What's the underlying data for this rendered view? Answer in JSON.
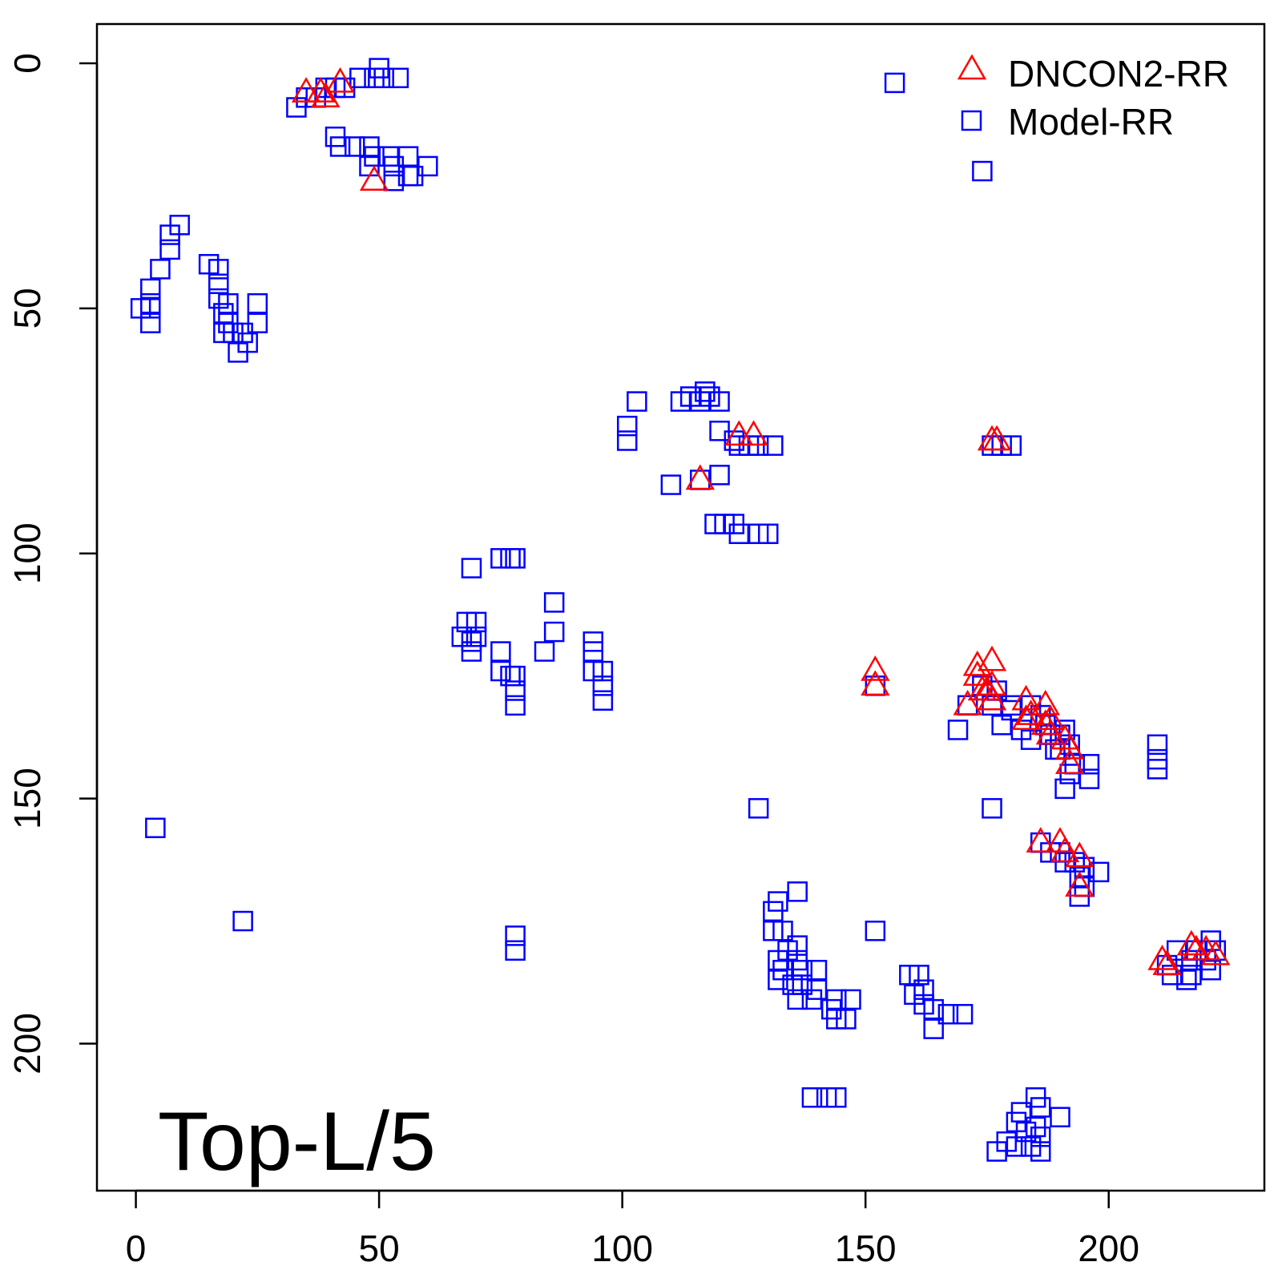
{
  "chart_data": {
    "type": "scatter",
    "title": "",
    "xlabel": "",
    "ylabel": "",
    "xlim": [
      -8,
      232
    ],
    "ylim": [
      -8,
      230
    ],
    "y_reversed": true,
    "xticks": [
      0,
      50,
      100,
      150,
      200
    ],
    "yticks": [
      0,
      50,
      100,
      150,
      200
    ],
    "panel_label": "Top-L/5",
    "legend_position": "top-right",
    "series": [
      {
        "name": "DNCON2-RR",
        "marker": "triangle",
        "color": "#ff0000",
        "points": [
          [
            35,
            6
          ],
          [
            38,
            6
          ],
          [
            39,
            7
          ],
          [
            42,
            4
          ],
          [
            49,
            24
          ],
          [
            116,
            85
          ],
          [
            124,
            76
          ],
          [
            127,
            76
          ],
          [
            176,
            77
          ],
          [
            177,
            77
          ],
          [
            152,
            124
          ],
          [
            152,
            127
          ],
          [
            171,
            131
          ],
          [
            173,
            123
          ],
          [
            173,
            125
          ],
          [
            174,
            128
          ],
          [
            175,
            128
          ],
          [
            176,
            122
          ],
          [
            176,
            127
          ],
          [
            176,
            130
          ],
          [
            183,
            130
          ],
          [
            183,
            134
          ],
          [
            184,
            133
          ],
          [
            187,
            131
          ],
          [
            187,
            135
          ],
          [
            188,
            134
          ],
          [
            188,
            137
          ],
          [
            191,
            138
          ],
          [
            192,
            140
          ],
          [
            192,
            143
          ],
          [
            186,
            159
          ],
          [
            190,
            159
          ],
          [
            191,
            161
          ],
          [
            194,
            162
          ],
          [
            194,
            168
          ],
          [
            211,
            183
          ],
          [
            212,
            184
          ],
          [
            217,
            180
          ],
          [
            218,
            181
          ],
          [
            220,
            181
          ],
          [
            222,
            182
          ]
        ]
      },
      {
        "name": "Model-RR",
        "marker": "square",
        "color": "#0000ff",
        "points": [
          [
            33,
            9
          ],
          [
            35,
            7
          ],
          [
            37,
            7
          ],
          [
            39,
            5
          ],
          [
            41,
            5
          ],
          [
            43,
            5
          ],
          [
            46,
            3
          ],
          [
            49,
            3
          ],
          [
            50,
            1
          ],
          [
            51,
            3
          ],
          [
            54,
            3
          ],
          [
            41,
            15
          ],
          [
            42,
            17
          ],
          [
            45,
            17
          ],
          [
            48,
            17
          ],
          [
            49,
            19
          ],
          [
            52,
            19
          ],
          [
            53,
            21
          ],
          [
            56,
            19
          ],
          [
            56,
            23
          ],
          [
            60,
            21
          ],
          [
            48,
            21
          ],
          [
            53,
            24
          ],
          [
            57,
            23
          ],
          [
            156,
            4
          ],
          [
            174,
            22
          ],
          [
            9,
            33
          ],
          [
            7,
            35
          ],
          [
            7,
            38
          ],
          [
            5,
            42
          ],
          [
            3,
            46
          ],
          [
            3,
            49
          ],
          [
            1,
            50
          ],
          [
            3,
            50
          ],
          [
            3,
            53
          ],
          [
            15,
            41
          ],
          [
            17,
            42
          ],
          [
            17,
            45
          ],
          [
            17,
            48
          ],
          [
            19,
            49
          ],
          [
            18,
            51
          ],
          [
            19,
            53
          ],
          [
            18,
            55
          ],
          [
            20,
            55
          ],
          [
            22,
            55
          ],
          [
            21,
            59
          ],
          [
            23,
            57
          ],
          [
            25,
            49
          ],
          [
            25,
            53
          ],
          [
            103,
            69
          ],
          [
            112,
            69
          ],
          [
            114,
            68
          ],
          [
            116,
            69
          ],
          [
            117,
            67
          ],
          [
            118,
            68
          ],
          [
            120,
            69
          ],
          [
            101,
            74
          ],
          [
            101,
            77
          ],
          [
            120,
            75
          ],
          [
            123,
            77
          ],
          [
            124,
            78
          ],
          [
            126,
            78
          ],
          [
            128,
            78
          ],
          [
            131,
            78
          ],
          [
            110,
            86
          ],
          [
            116,
            85
          ],
          [
            120,
            84
          ],
          [
            119,
            94
          ],
          [
            121,
            94
          ],
          [
            123,
            94
          ],
          [
            124,
            96
          ],
          [
            128,
            96
          ],
          [
            130,
            96
          ],
          [
            176,
            78
          ],
          [
            178,
            78
          ],
          [
            180,
            78
          ],
          [
            69,
            103
          ],
          [
            75,
            101
          ],
          [
            77,
            101
          ],
          [
            78,
            101
          ],
          [
            86,
            110
          ],
          [
            86,
            116
          ],
          [
            84,
            120
          ],
          [
            67,
            117
          ],
          [
            68,
            114
          ],
          [
            70,
            114
          ],
          [
            70,
            117
          ],
          [
            69,
            118
          ],
          [
            69,
            120
          ],
          [
            75,
            120
          ],
          [
            75,
            124
          ],
          [
            77,
            125
          ],
          [
            78,
            125
          ],
          [
            78,
            128
          ],
          [
            78,
            131
          ],
          [
            94,
            118
          ],
          [
            94,
            120
          ],
          [
            94,
            124
          ],
          [
            96,
            124
          ],
          [
            96,
            127
          ],
          [
            96,
            130
          ],
          [
            152,
            127
          ],
          [
            169,
            136
          ],
          [
            171,
            131
          ],
          [
            174,
            127
          ],
          [
            177,
            128
          ],
          [
            176,
            131
          ],
          [
            180,
            131
          ],
          [
            178,
            135
          ],
          [
            180,
            132
          ],
          [
            182,
            136
          ],
          [
            184,
            131
          ],
          [
            184,
            138
          ],
          [
            186,
            133
          ],
          [
            187,
            135
          ],
          [
            188,
            137
          ],
          [
            190,
            137
          ],
          [
            191,
            136
          ],
          [
            189,
            140
          ],
          [
            190,
            140
          ],
          [
            192,
            139
          ],
          [
            193,
            143
          ],
          [
            192,
            145
          ],
          [
            191,
            148
          ],
          [
            196,
            143
          ],
          [
            196,
            146
          ],
          [
            210,
            139
          ],
          [
            210,
            142
          ],
          [
            210,
            144
          ],
          [
            128,
            152
          ],
          [
            176,
            152
          ],
          [
            186,
            159
          ],
          [
            188,
            161
          ],
          [
            190,
            161
          ],
          [
            191,
            163
          ],
          [
            193,
            163
          ],
          [
            195,
            164
          ],
          [
            194,
            166
          ],
          [
            195,
            168
          ],
          [
            194,
            170
          ],
          [
            198,
            165
          ],
          [
            4,
            156
          ],
          [
            22,
            175
          ],
          [
            78,
            178
          ],
          [
            78,
            181
          ],
          [
            131,
            173
          ],
          [
            132,
            171
          ],
          [
            136,
            169
          ],
          [
            131,
            177
          ],
          [
            133,
            177
          ],
          [
            134,
            181
          ],
          [
            132,
            183
          ],
          [
            133,
            185
          ],
          [
            136,
            180
          ],
          [
            136,
            183
          ],
          [
            132,
            187
          ],
          [
            137,
            185
          ],
          [
            135,
            188
          ],
          [
            137,
            188
          ],
          [
            140,
            185
          ],
          [
            140,
            189
          ],
          [
            136,
            191
          ],
          [
            139,
            191
          ],
          [
            144,
            191
          ],
          [
            147,
            191
          ],
          [
            143,
            193
          ],
          [
            144,
            195
          ],
          [
            146,
            195
          ],
          [
            152,
            177
          ],
          [
            159,
            186
          ],
          [
            161,
            186
          ],
          [
            160,
            190
          ],
          [
            162,
            189
          ],
          [
            162,
            192
          ],
          [
            164,
            193
          ],
          [
            167,
            194
          ],
          [
            170,
            194
          ],
          [
            164,
            197
          ],
          [
            139,
            211
          ],
          [
            142,
            211
          ],
          [
            144,
            211
          ],
          [
            185,
            211
          ],
          [
            186,
            213
          ],
          [
            182,
            214
          ],
          [
            190,
            215
          ],
          [
            181,
            216
          ],
          [
            183,
            218
          ],
          [
            185,
            217
          ],
          [
            186,
            219
          ],
          [
            179,
            220
          ],
          [
            181,
            221
          ],
          [
            184,
            221
          ],
          [
            186,
            222
          ],
          [
            177,
            222
          ],
          [
            212,
            184
          ],
          [
            214,
            181
          ],
          [
            213,
            186
          ],
          [
            216,
            187
          ],
          [
            217,
            183
          ],
          [
            218,
            181
          ],
          [
            220,
            183
          ],
          [
            221,
            179
          ],
          [
            222,
            181
          ],
          [
            221,
            185
          ],
          [
            217,
            186
          ]
        ]
      }
    ]
  }
}
